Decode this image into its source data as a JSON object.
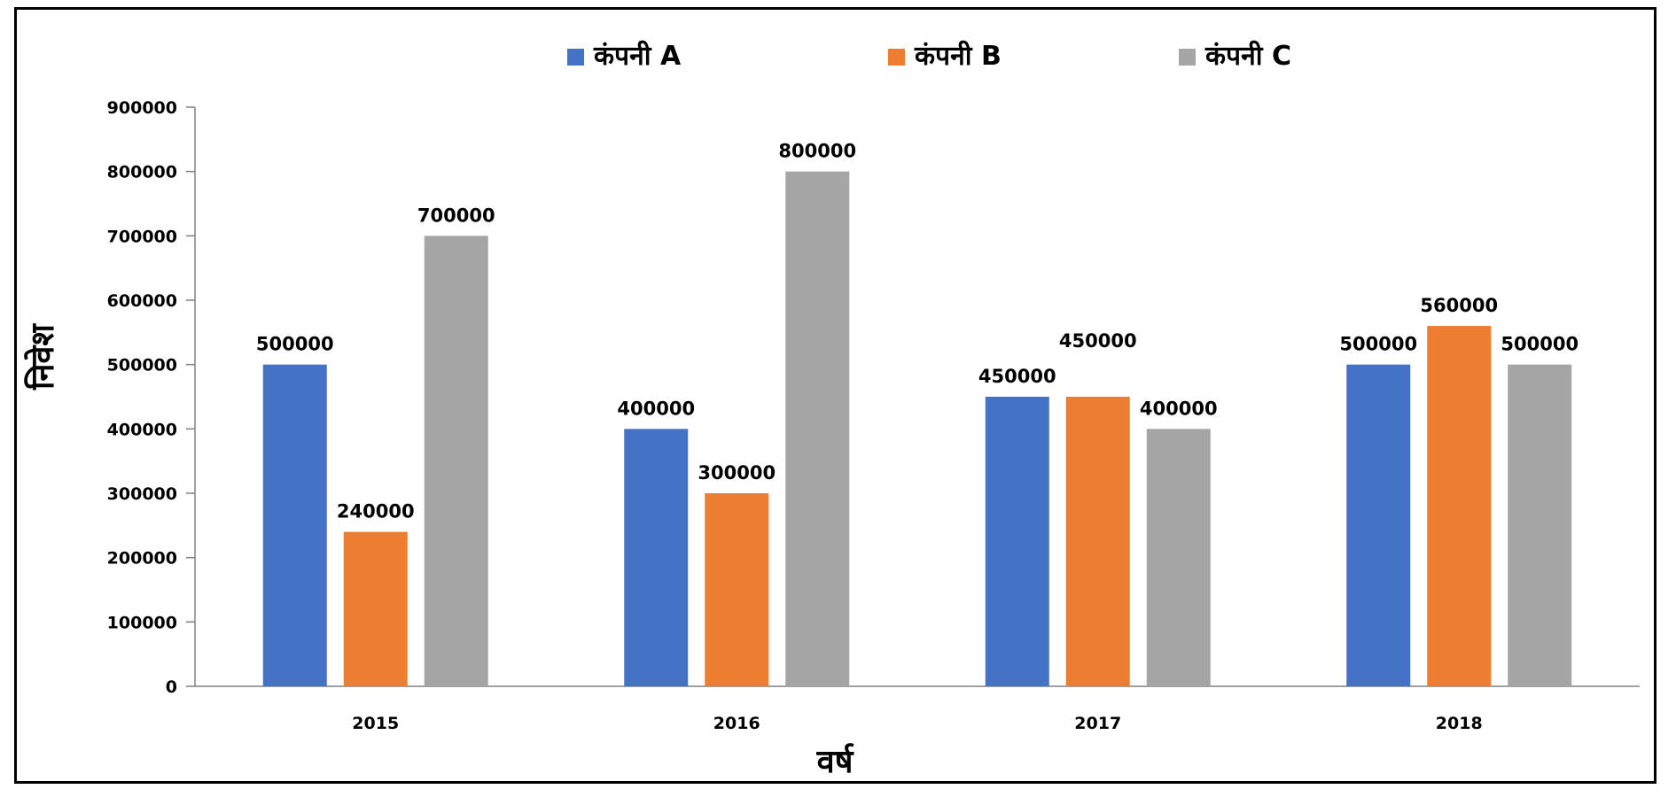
{
  "chart_data": {
    "type": "bar",
    "categories": [
      "2015",
      "2016",
      "2017",
      "2018"
    ],
    "series": [
      {
        "name": "कंपनी A",
        "color": "#4472C4",
        "values": [
          500000,
          400000,
          450000,
          500000
        ]
      },
      {
        "name": "कंपनी B",
        "color": "#ED7D31",
        "values": [
          240000,
          300000,
          450000,
          560000
        ]
      },
      {
        "name": "कंपनी C",
        "color": "#A5A5A5",
        "values": [
          700000,
          800000,
          400000,
          500000
        ]
      }
    ],
    "xlabel": "वर्ष",
    "ylabel": "निवेश",
    "ylim": [
      0,
      900000
    ],
    "yticks": [
      "0",
      "100000",
      "200000",
      "300000",
      "400000",
      "500000",
      "600000",
      "700000",
      "800000",
      "900000"
    ],
    "legend_position": "top-center",
    "grid": false
  }
}
